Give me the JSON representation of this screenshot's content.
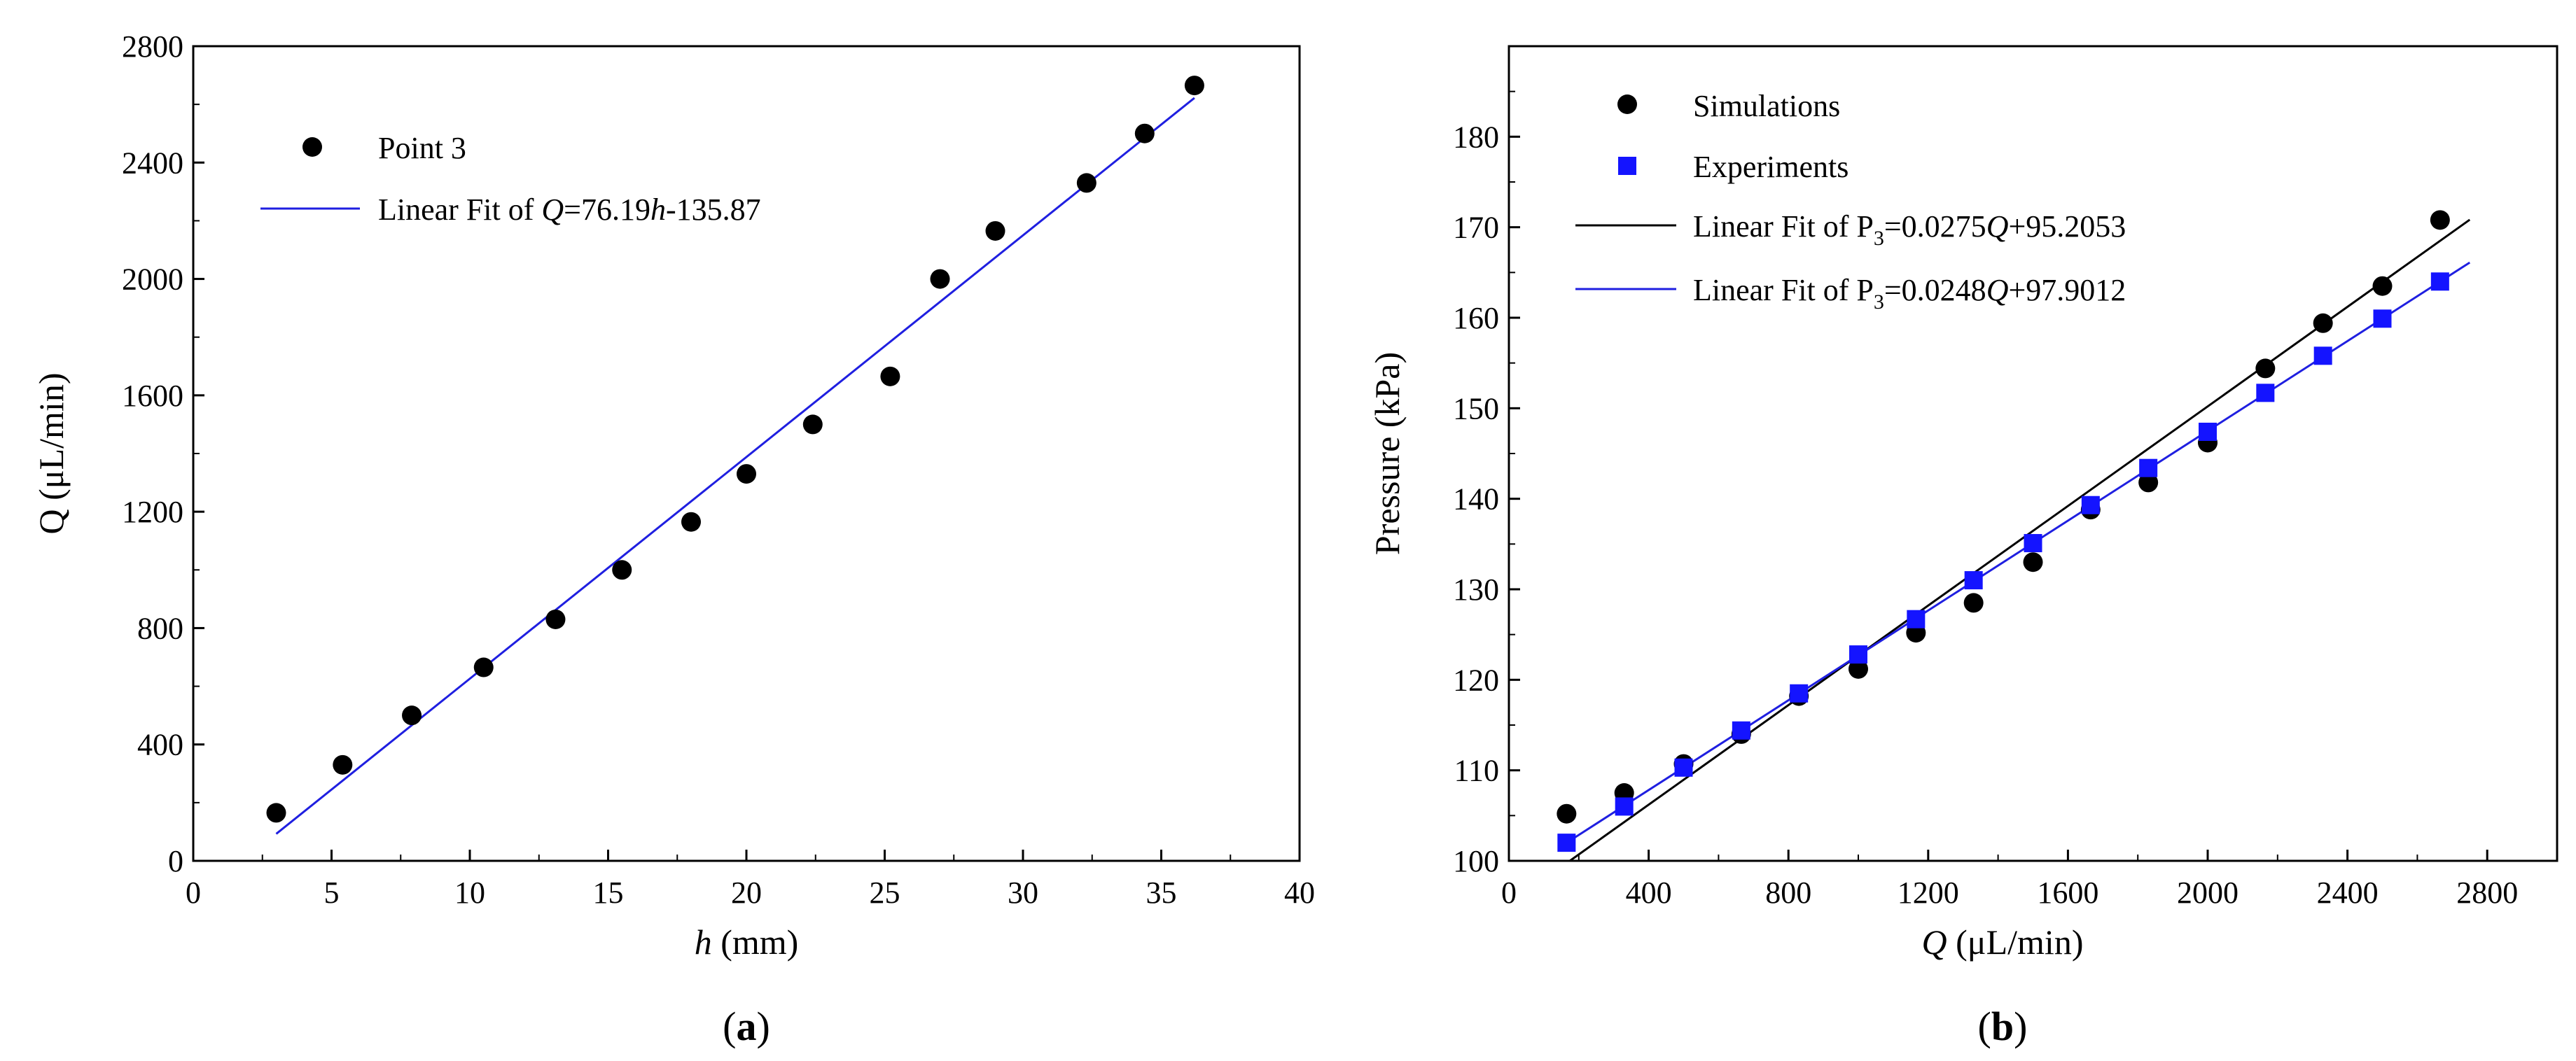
{
  "chart_data": [
    {
      "panel": "a",
      "panel_label": {
        "open": "(",
        "letter": "a",
        "close": ")"
      },
      "type": "scatter",
      "xlabel": {
        "var": "h",
        "unit": " (mm)"
      },
      "ylabel": "Q (μL/min)",
      "xlim": [
        0,
        40
      ],
      "ylim": [
        0,
        2800
      ],
      "xticks": [
        0,
        5,
        10,
        15,
        20,
        25,
        30,
        35,
        40
      ],
      "yticks": [
        0,
        400,
        800,
        1200,
        1600,
        2000,
        2400,
        2800
      ],
      "series": [
        {
          "name": "Point 3",
          "kind": "points",
          "marker": "circle",
          "color": "#000000",
          "x": [
            3.0,
            5.4,
            7.9,
            10.5,
            13.1,
            15.5,
            18.0,
            20.0,
            22.4,
            25.2,
            27.0,
            29.0,
            32.3,
            34.4,
            36.2
          ],
          "y": [
            165,
            330,
            500,
            665,
            830,
            1000,
            1165,
            1330,
            1500,
            1665,
            2000,
            2165,
            2330,
            2500,
            2665
          ]
        },
        {
          "name": "Linear Fit",
          "kind": "fit",
          "color": "#1f1fe0",
          "slope": 76.19,
          "intercept": -135.87,
          "x_range": [
            3.0,
            36.2
          ],
          "legend": {
            "prefix": "Linear Fit of ",
            "var1": "Q",
            "mid": "=76.19",
            "var2": "h",
            "suffix": "-135.87"
          }
        }
      ]
    },
    {
      "panel": "b",
      "panel_label": {
        "open": "(",
        "letter": "b",
        "close": ")"
      },
      "type": "scatter",
      "xlabel": {
        "var": "Q",
        "unit": " (μL/min)"
      },
      "ylabel": "Pressure (kPa)",
      "xlim": [
        0,
        3000
      ],
      "ylim": [
        100,
        190
      ],
      "xticks": [
        0,
        400,
        800,
        1200,
        1600,
        2000,
        2400,
        2800
      ],
      "yticks": [
        100,
        110,
        120,
        130,
        140,
        150,
        160,
        170,
        180
      ],
      "series": [
        {
          "name": "Simulations",
          "kind": "points",
          "marker": "circle",
          "color": "#000000",
          "x": [
            165,
            330,
            500,
            665,
            830,
            1000,
            1165,
            1330,
            1500,
            1665,
            1830,
            2000,
            2165,
            2330,
            2500,
            2665
          ],
          "y": [
            105.2,
            107.5,
            110.7,
            114.0,
            118.2,
            121.2,
            125.2,
            128.5,
            133.0,
            138.8,
            141.8,
            146.2,
            154.4,
            159.4,
            163.5,
            170.8
          ]
        },
        {
          "name": "Experiments",
          "kind": "points",
          "marker": "square",
          "color": "#1414ff",
          "x": [
            165,
            330,
            500,
            665,
            830,
            1000,
            1165,
            1330,
            1500,
            1665,
            1830,
            2000,
            2165,
            2330,
            2500,
            2665
          ],
          "y": [
            102.0,
            106.0,
            110.3,
            114.4,
            118.5,
            122.8,
            126.7,
            131.0,
            135.1,
            139.3,
            143.4,
            147.4,
            151.7,
            155.8,
            159.9,
            164.0
          ]
        },
        {
          "name": "Linear Fit Simulations",
          "kind": "fit",
          "color": "#000000",
          "slope": 0.0275,
          "intercept": 95.2053,
          "x_range": [
            170,
            2750
          ],
          "legend": {
            "prefix": "Linear Fit of P",
            "sub": "3",
            "mid": "=0.0275",
            "var": "Q",
            "suffix": "+95.2053"
          }
        },
        {
          "name": "Linear Fit Experiments",
          "kind": "fit",
          "color": "#1f1fe0",
          "slope": 0.0248,
          "intercept": 97.9012,
          "x_range": [
            170,
            2750
          ],
          "legend": {
            "prefix": "Linear Fit of P",
            "sub": "3",
            "mid": "=0.0248",
            "var": "Q",
            "suffix": "+97.9012"
          }
        }
      ]
    }
  ]
}
